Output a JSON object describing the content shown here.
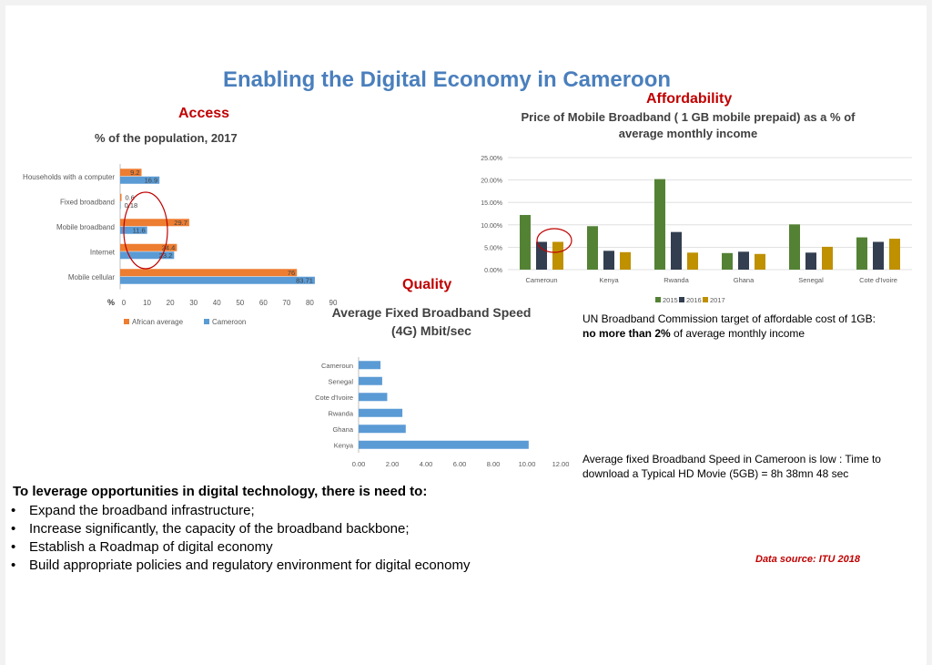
{
  "title": "Enabling the Digital Economy in Cameroon",
  "sections": {
    "access": "Access",
    "affordability": "Affordability",
    "quality": "Quality"
  },
  "subtitles": {
    "access": "% of the population, 2017",
    "affordability_line1": "Price of Mobile Broadband ( 1 GB mobile prepaid) as a % of",
    "affordability_line2": "average monthly income",
    "quality_line1": "Average Fixed Broadband Speed",
    "quality_line2": "(4G) Mbit/sec"
  },
  "notes": {
    "un_target_line1": "UN Broadband Commission target of affordable cost of 1GB:",
    "un_target_bold": "no more than 2%",
    "un_target_rest": " of average monthly income",
    "speed_note": "Average fixed Broadband Speed in Cameroon is low : Time to download a Typical HD Movie (5GB) = 8h 38mn 48 sec"
  },
  "bottom": {
    "heading": "To leverage opportunities in digital technology, there is need to:",
    "bullets": [
      "Expand the broadband infrastructure;",
      "Increase significantly, the capacity of the broadband backbone;",
      "Establish a Roadmap of digital economy",
      "Build appropriate policies  and  regulatory environment for digital economy"
    ]
  },
  "source": "Data source: ITU 2018",
  "chart_data": [
    {
      "id": "access",
      "type": "bar",
      "orientation": "horizontal",
      "categories": [
        "Households with a computer",
        "Fixed broadband",
        "Mobile broadband",
        "Internet",
        "Mobile cellular"
      ],
      "series": [
        {
          "name": "African average",
          "color": "#ed7d31",
          "values": [
            9.2,
            0.6,
            29.7,
            24.4,
            76
          ],
          "labels": [
            "9.2",
            "0.6",
            "29.7",
            "24.4",
            "76"
          ]
        },
        {
          "name": "Cameroon",
          "color": "#5b9bd5",
          "values": [
            16.9,
            0.18,
            11.6,
            23.2,
            83.71
          ],
          "labels": [
            "16.9",
            "0.18",
            "11.6",
            "23.2",
            "83.71"
          ]
        }
      ],
      "x_axis_label": "%",
      "xlim": [
        0,
        90
      ],
      "xticks": [
        "0",
        "10",
        "20",
        "30",
        "40",
        "50",
        "60",
        "70",
        "80",
        "90"
      ],
      "legend": "bottom",
      "annotation": "red ellipse around Fixed broadband, Mobile broadband and Internet bars"
    },
    {
      "id": "affordability",
      "type": "bar",
      "categories": [
        "Cameroun",
        "Kenya",
        "Rwanda",
        "Ghana",
        "Senegal",
        "Cote d'Ivoire"
      ],
      "series": [
        {
          "name": "2015",
          "color": "#548235",
          "values": [
            12.2,
            9.7,
            20.2,
            3.7,
            10.1,
            7.2
          ]
        },
        {
          "name": "2016",
          "color": "#333f50",
          "values": [
            6.2,
            4.2,
            8.4,
            4.0,
            3.8,
            6.2
          ]
        },
        {
          "name": "2017",
          "color": "#bf9000",
          "values": [
            6.2,
            3.9,
            3.8,
            3.5,
            5.1,
            6.9
          ]
        }
      ],
      "ylim": [
        0,
        25
      ],
      "yticks": [
        "0.00%",
        "5.00%",
        "10.00%",
        "15.00%",
        "20.00%",
        "25.00%"
      ],
      "grid": true,
      "legend": "bottom",
      "annotation": "red ellipse around Cameroun 2016-2017 bars"
    },
    {
      "id": "quality",
      "type": "bar",
      "orientation": "horizontal",
      "categories": [
        "Cameroun",
        "Senegal",
        "Cote d'Ivoire",
        "Rwanda",
        "Ghana",
        "Kenya"
      ],
      "series": [
        {
          "color": "#5b9bd5",
          "values": [
            1.3,
            1.4,
            1.7,
            2.6,
            2.8,
            10.1
          ]
        }
      ],
      "xlim": [
        0,
        12
      ],
      "xticks": [
        "0.00",
        "2.00",
        "4.00",
        "6.00",
        "8.00",
        "10.00",
        "12.00"
      ]
    }
  ]
}
